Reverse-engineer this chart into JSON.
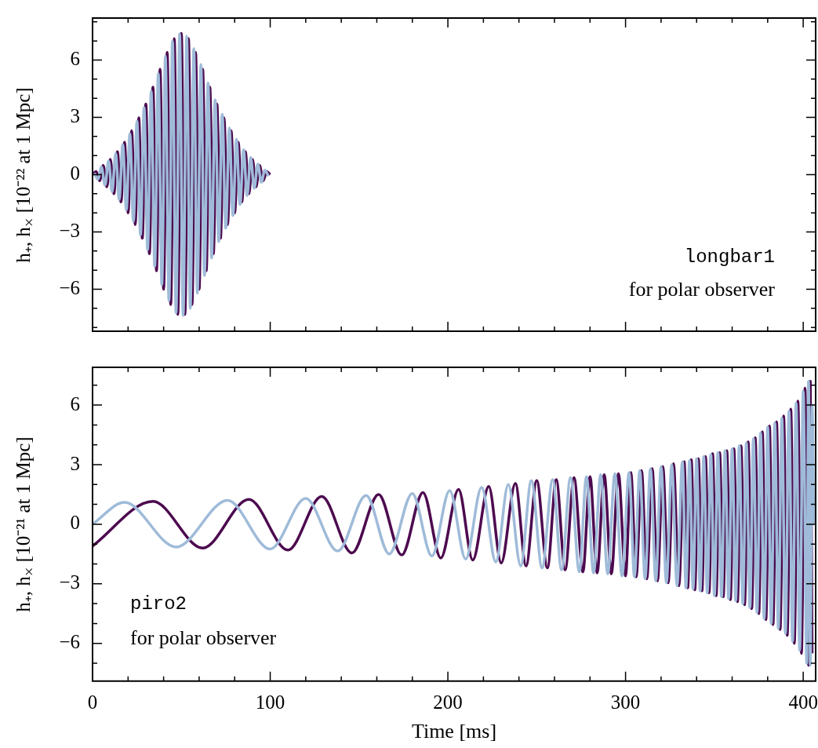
{
  "chart_data": [
    {
      "type": "line",
      "ylabel": "h₊, h$_{×}$ [10⁻²² at 1 Mpc]",
      "annotations": [
        "longbar1",
        "for polar observer"
      ],
      "xlim": [
        0,
        407
      ],
      "ylim": [
        -8.2,
        8.2
      ],
      "xticks": [
        0,
        {
          "value": 20,
          "label": null
        },
        {
          "value": 40,
          "label": null
        },
        {
          "value": 60,
          "label": null
        },
        {
          "value": 80,
          "label": null
        },
        100,
        {
          "value": 120,
          "label": null
        },
        {
          "value": 140,
          "label": null
        },
        {
          "value": 160,
          "label": null
        },
        {
          "value": 180,
          "label": null
        },
        200,
        {
          "value": 220,
          "label": null
        },
        {
          "value": 240,
          "label": null
        },
        {
          "value": 260,
          "label": null
        },
        {
          "value": 280,
          "label": null
        },
        300,
        {
          "value": 320,
          "label": null
        },
        {
          "value": 340,
          "label": null
        },
        {
          "value": 360,
          "label": null
        },
        {
          "value": 380,
          "label": null
        },
        400
      ],
      "yticks": [
        {
          "value": -8,
          "label": null
        },
        {
          "value": -7,
          "label": null
        },
        {
          "value": -6,
          "label": "−6"
        },
        {
          "value": -5,
          "label": null
        },
        {
          "value": -4,
          "label": null
        },
        {
          "value": -3,
          "label": "−3"
        },
        {
          "value": -2,
          "label": null
        },
        {
          "value": -1,
          "label": null
        },
        0,
        {
          "value": 1,
          "label": null
        },
        {
          "value": 2,
          "label": null
        },
        3,
        {
          "value": 4,
          "label": null
        },
        {
          "value": 5,
          "label": null
        },
        6,
        {
          "value": 7,
          "label": null
        },
        {
          "value": 8,
          "label": null
        }
      ],
      "tick_labels": "y",
      "series": [
        {
          "color": "#4d0a4f",
          "x": [
            0,
            2,
            4,
            6,
            8,
            10,
            12,
            14,
            16,
            18,
            20,
            22,
            24,
            26,
            28,
            30,
            32,
            34,
            36,
            38,
            40,
            42,
            44,
            46,
            48,
            50,
            52,
            54,
            56,
            58,
            60,
            62,
            64,
            66,
            68,
            70,
            72,
            74,
            76,
            78,
            80,
            82,
            84,
            86,
            88,
            90,
            92,
            94,
            96,
            98,
            100
          ],
          "values": [
            0,
            0.16,
            -0.32,
            0.48,
            -0.64,
            0.8,
            -1.0,
            1.2,
            -1.43,
            1.7,
            -2.0,
            2.3,
            -2.62,
            2.98,
            -3.33,
            3.7,
            -4.14,
            4.58,
            -5.04,
            5.52,
            -6.0,
            6.4,
            -6.8,
            7.12,
            -7.32,
            7.4,
            -7.32,
            7.12,
            -6.8,
            6.4,
            -6.0,
            5.52,
            -5.04,
            4.58,
            -4.14,
            3.7,
            -3.33,
            2.98,
            -2.62,
            2.3,
            -2.0,
            1.7,
            -1.43,
            1.2,
            -1.0,
            0.8,
            -0.64,
            0.48,
            -0.32,
            0.16,
            0
          ]
        },
        {
          "color": "#9fbbd9",
          "x": [
            1,
            3,
            5,
            7,
            9,
            11,
            13,
            15,
            17,
            19,
            21,
            23,
            25,
            27,
            29,
            31,
            33,
            35,
            37,
            39,
            41,
            43,
            45,
            47,
            49,
            51,
            53,
            55,
            57,
            59,
            61,
            63,
            65,
            67,
            69,
            71,
            73,
            75,
            77,
            79,
            81,
            83,
            85,
            87,
            89,
            91,
            93,
            95,
            97,
            99
          ],
          "values": [
            0.08,
            -0.24,
            0.4,
            -0.56,
            0.72,
            -0.9,
            1.1,
            -1.3,
            1.57,
            -1.85,
            2.15,
            -2.45,
            2.8,
            -3.15,
            3.5,
            -3.92,
            4.36,
            -4.8,
            5.28,
            -5.76,
            6.2,
            -6.6,
            7.0,
            -7.24,
            7.38,
            -7.38,
            7.24,
            -7.0,
            6.6,
            -6.2,
            5.76,
            -5.28,
            4.8,
            -4.36,
            3.92,
            -3.5,
            3.15,
            -2.8,
            2.45,
            -2.15,
            1.85,
            -1.57,
            1.3,
            -1.1,
            0.9,
            -0.72,
            0.56,
            -0.4,
            0.24,
            -0.08
          ]
        }
      ]
    },
    {
      "type": "line",
      "xlabel": "Time [ms]",
      "ylabel": "h₊, h$_{×}$ [10⁻²¹ at 1 Mpc]",
      "annotations": [
        "piro2",
        "for polar observer"
      ],
      "xlim": [
        0,
        407
      ],
      "ylim": [
        -7.9,
        7.9
      ],
      "xticks": [
        0,
        {
          "value": 20,
          "label": null
        },
        {
          "value": 40,
          "label": null
        },
        {
          "value": 60,
          "label": null
        },
        {
          "value": 80,
          "label": null
        },
        100,
        {
          "value": 120,
          "label": null
        },
        {
          "value": 140,
          "label": null
        },
        {
          "value": 160,
          "label": null
        },
        {
          "value": 180,
          "label": null
        },
        200,
        {
          "value": 220,
          "label": null
        },
        {
          "value": 240,
          "label": null
        },
        {
          "value": 260,
          "label": null
        },
        {
          "value": 280,
          "label": null
        },
        300,
        {
          "value": 320,
          "label": null
        },
        {
          "value": 340,
          "label": null
        },
        {
          "value": 360,
          "label": null
        },
        {
          "value": 380,
          "label": null
        },
        400
      ],
      "yticks": [
        {
          "value": -7,
          "label": null
        },
        {
          "value": -6,
          "label": "−6"
        },
        {
          "value": -5,
          "label": null
        },
        {
          "value": -4,
          "label": null
        },
        {
          "value": -3,
          "label": "−3"
        },
        {
          "value": -2,
          "label": null
        },
        {
          "value": -1,
          "label": null
        },
        0,
        {
          "value": 1,
          "label": null
        },
        {
          "value": 2,
          "label": null
        },
        3,
        {
          "value": 4,
          "label": null
        },
        {
          "value": 5,
          "label": null
        },
        6,
        {
          "value": 7,
          "label": null
        }
      ],
      "series": [
        {
          "color": "#4d0a4f",
          "x": [
            0,
            34,
            62,
            88,
            110,
            129,
            146,
            161,
            174,
            186,
            196,
            206,
            214,
            223,
            230,
            238,
            244,
            250,
            256,
            261,
            266,
            271,
            276,
            280,
            284,
            288,
            292,
            296,
            300,
            303,
            306,
            309,
            312,
            315,
            318,
            321,
            324,
            327,
            330,
            333,
            335,
            337,
            339,
            341,
            343,
            345,
            347,
            349,
            351,
            353,
            355,
            357,
            359,
            361,
            363,
            365,
            367,
            369,
            371,
            373,
            375,
            377,
            379,
            381,
            383,
            385,
            387,
            389,
            391,
            393,
            395,
            397,
            399,
            401,
            403,
            404,
            405
          ],
          "values": [
            -1.1,
            1.15,
            -1.2,
            1.25,
            -1.3,
            1.4,
            -1.45,
            1.5,
            -1.55,
            1.6,
            -1.7,
            1.75,
            -1.8,
            1.9,
            -1.95,
            2.05,
            -2.1,
            2.2,
            -2.2,
            2.25,
            -2.3,
            2.35,
            -2.4,
            2.4,
            -2.45,
            2.5,
            -2.5,
            2.55,
            -2.6,
            2.6,
            -2.65,
            2.7,
            -2.75,
            2.8,
            -2.85,
            2.9,
            -2.95,
            3.05,
            -3.1,
            3.15,
            -3.2,
            3.25,
            -3.3,
            3.3,
            -3.35,
            3.4,
            -3.45,
            3.55,
            -3.6,
            3.6,
            -3.65,
            3.7,
            -3.8,
            3.8,
            -3.9,
            3.95,
            -4.05,
            4.15,
            -4.25,
            4.35,
            -4.5,
            4.65,
            -4.8,
            4.95,
            -5.05,
            5.15,
            -5.3,
            5.45,
            -5.6,
            5.8,
            -6.0,
            6.2,
            -6.5,
            6.85,
            -7.1,
            7.2,
            -6.5
          ]
        },
        {
          "color": "#9fbbd9",
          "x": [
            0,
            18,
            47,
            76,
            100,
            120,
            138,
            154,
            167,
            180,
            191,
            201,
            210,
            219,
            227,
            234,
            241,
            247,
            253,
            259,
            264,
            269,
            274,
            278,
            282,
            286,
            290,
            294,
            298,
            302,
            305,
            308,
            311,
            314,
            317,
            320,
            323,
            326,
            329,
            332,
            334,
            336,
            338,
            340,
            342,
            344,
            346,
            348,
            350,
            352,
            354,
            356,
            358,
            360,
            362,
            364,
            366,
            368,
            370,
            372,
            374,
            376,
            378,
            380,
            382,
            384,
            386,
            388,
            390,
            392,
            394,
            396,
            398,
            400,
            402,
            403,
            404,
            405,
            406
          ],
          "values": [
            0,
            1.1,
            -1.15,
            1.2,
            -1.25,
            1.3,
            -1.35,
            1.45,
            -1.5,
            1.55,
            -1.6,
            1.7,
            -1.75,
            1.85,
            -1.9,
            2.0,
            -2.1,
            2.2,
            -2.2,
            2.25,
            -2.3,
            2.35,
            -2.4,
            2.4,
            -2.45,
            2.5,
            -2.5,
            2.55,
            -2.6,
            2.6,
            -2.65,
            2.7,
            -2.75,
            2.8,
            -2.85,
            2.9,
            -2.95,
            3.0,
            -3.1,
            3.15,
            -3.2,
            3.2,
            -3.25,
            3.3,
            -3.35,
            3.4,
            -3.45,
            3.5,
            -3.6,
            3.6,
            -3.65,
            3.7,
            -3.75,
            3.8,
            -3.85,
            3.95,
            -4.0,
            4.1,
            -4.2,
            4.3,
            -4.45,
            4.6,
            -4.75,
            4.9,
            -5.0,
            5.1,
            -5.25,
            5.35,
            -5.5,
            5.7,
            -5.9,
            6.1,
            -6.35,
            6.7,
            -7.0,
            7.2,
            -7.1,
            6.0,
            0
          ]
        }
      ]
    }
  ]
}
